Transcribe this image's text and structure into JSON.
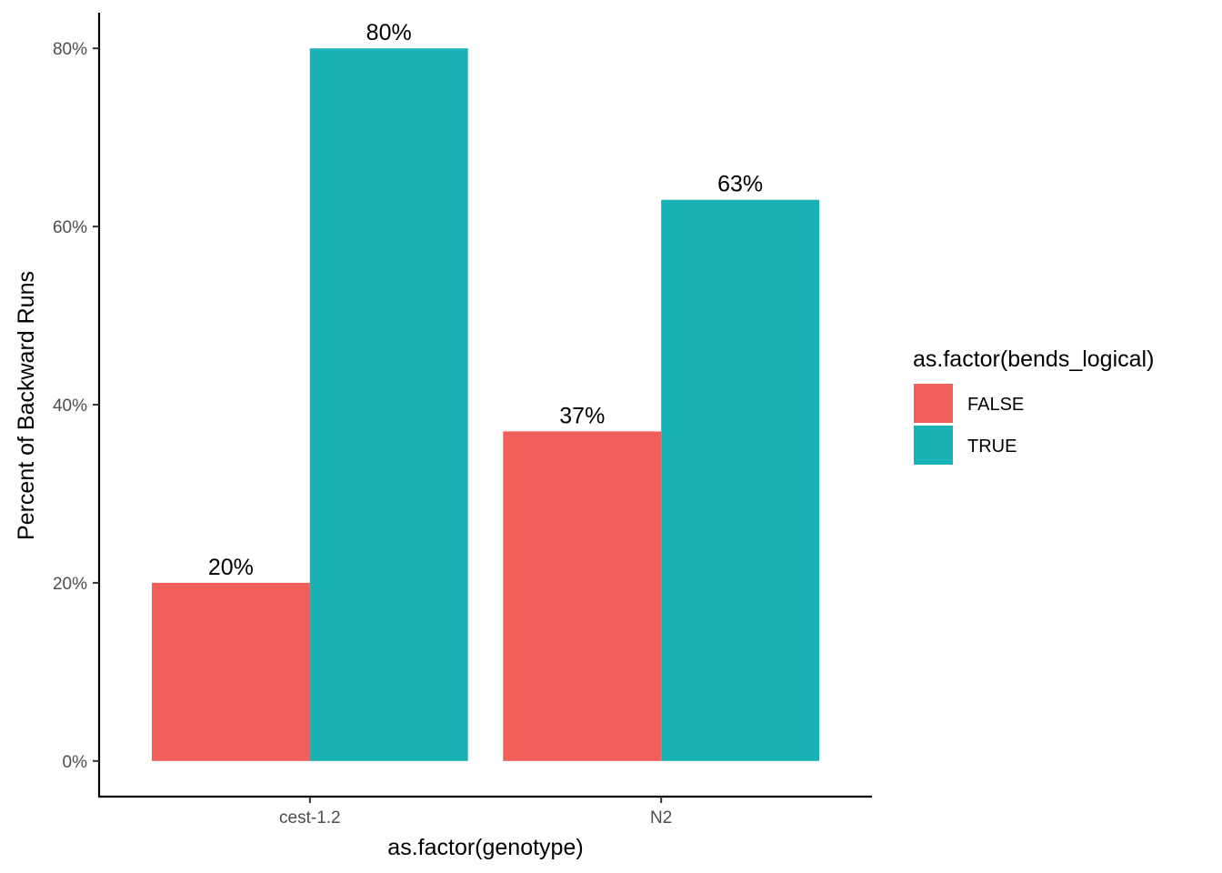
{
  "chart_data": {
    "type": "bar",
    "title": "",
    "xlabel": "as.factor(genotype)",
    "ylabel": "Percent of Backward Runs",
    "categories": [
      "cest-1.2",
      "N2"
    ],
    "series": [
      {
        "name": "FALSE",
        "values": [
          0.2,
          0.37
        ],
        "labels": [
          "20%",
          "37%"
        ],
        "color": "#F25F5A"
      },
      {
        "name": "TRUE",
        "values": [
          0.8,
          0.63
        ],
        "labels": [
          "80%",
          "63%"
        ],
        "color": "#19B3B6"
      }
    ],
    "ylim": [
      -0.04,
      0.84
    ],
    "yticks": [
      0,
      0.2,
      0.4,
      0.6,
      0.8
    ],
    "ytick_labels": [
      "0%",
      "20%",
      "40%",
      "60%",
      "80%"
    ],
    "grid": false,
    "legend": {
      "title": "as.factor(bends_logical)",
      "position": "right",
      "entries": [
        "FALSE",
        "TRUE"
      ]
    }
  }
}
